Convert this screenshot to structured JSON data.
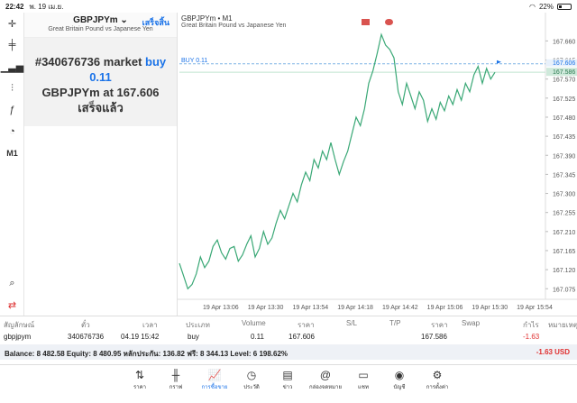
{
  "status": {
    "time": "22:42",
    "date": "พ. 19 เม.ย.",
    "battery": "22%"
  },
  "toolbar": {
    "timeframe": "M1"
  },
  "order_panel": {
    "symbol": "GBPJPYm",
    "description": "Great Britain Pound vs Japanese Yen",
    "done_label": "เสร็จสิ้น",
    "result_line1_prefix": "#340676736 market",
    "result_line1_action": "buy 0.11",
    "result_line2_prefix": "GBPJPYm at",
    "result_line2_price": "167.606",
    "result_line3": "เสร็จแล้ว"
  },
  "chart": {
    "title": "GBPJPYm • M1",
    "description": "Great Britain Pound vs Japanese Yen",
    "buy_line_label": "BUY 0.11",
    "buy_price_tag": "167.606",
    "current_price_tag": "167.586",
    "accent": "#3aa876"
  },
  "chart_data": {
    "type": "line",
    "xlabels": [
      "19 Apr 13:06",
      "19 Apr 13:30",
      "19 Apr 13:54",
      "19 Apr 14:18",
      "19 Apr 14:42",
      "19 Apr 15:06",
      "19 Apr 15:30",
      "19 Apr 15:54"
    ],
    "yticks": [
      "167.660",
      "167.615",
      "167.570",
      "167.525",
      "167.480",
      "167.435",
      "167.390",
      "167.345",
      "167.300",
      "167.255",
      "167.210",
      "167.165",
      "167.120",
      "167.075"
    ],
    "ylim": [
      167.05,
      167.68
    ],
    "buy_price": 167.606,
    "current_price": 167.586,
    "values": [
      167.135,
      167.105,
      167.075,
      167.085,
      167.11,
      167.15,
      167.125,
      167.14,
      167.175,
      167.19,
      167.16,
      167.145,
      167.17,
      167.175,
      167.14,
      167.155,
      167.18,
      167.2,
      167.15,
      167.17,
      167.21,
      167.18,
      167.195,
      167.23,
      167.26,
      167.24,
      167.27,
      167.3,
      167.28,
      167.32,
      167.35,
      167.33,
      167.38,
      167.36,
      167.4,
      167.38,
      167.42,
      167.38,
      167.345,
      167.375,
      167.4,
      167.44,
      167.48,
      167.46,
      167.5,
      167.56,
      167.59,
      167.63,
      167.675,
      167.65,
      167.64,
      167.62,
      167.54,
      167.51,
      167.56,
      167.53,
      167.5,
      167.54,
      167.52,
      167.47,
      167.5,
      167.475,
      167.515,
      167.495,
      167.53,
      167.51,
      167.545,
      167.52,
      167.56,
      167.54,
      167.58,
      167.6,
      167.56,
      167.595,
      167.57,
      167.586
    ]
  },
  "table": {
    "headers": [
      "สัญลักษณ์",
      "ตั๋ว",
      "เวลา",
      "ประเภท",
      "Volume",
      "ราคา",
      "S/L",
      "T/P",
      "ราคา",
      "Swap",
      "กำไร",
      "หมายเหตุ"
    ],
    "row": {
      "symbol": "gbpjpym",
      "ticket": "340676736",
      "time": "04.19 15:42",
      "type": "buy",
      "volume": "0.11",
      "open_price": "167.606",
      "price": "167.586",
      "profit": "-1.63"
    }
  },
  "balance": {
    "text": "Balance: 8 482.58 Equity: 8 480.95 หลักประกัน: 136.82 ฟรี: 8 344.13 Level: 6 198.62%",
    "pl": "-1.63",
    "currency": "USD"
  },
  "nav": [
    "ราคา",
    "กราฟ",
    "การซื้อขาย",
    "ประวัติ",
    "ข่าว",
    "กล่องจดหมาย",
    "แชท",
    "บัญชี",
    "การตั้งค่า"
  ]
}
